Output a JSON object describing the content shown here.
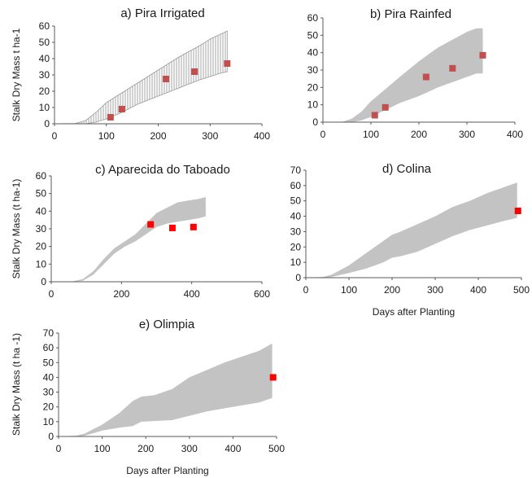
{
  "colors": {
    "band": "#c3c3c3",
    "hatch": "#9a9a9a",
    "obs_muted": "#c0504d",
    "obs_bright": "#ff0000",
    "axis": "#595959"
  },
  "chart_data": [
    {
      "id": "a",
      "type": "area",
      "title": "a) Pira Irrigated",
      "xlabel": "",
      "ylabel": "Stalk Dry Mass t ha-1",
      "xlim": [
        0,
        400
      ],
      "ylim": [
        0,
        60
      ],
      "xticks": [
        0,
        100,
        200,
        300,
        400
      ],
      "yticks": [
        0,
        10,
        20,
        30,
        40,
        50,
        60
      ],
      "band_style": "hatched",
      "marker": "obs_muted",
      "band": {
        "x": [
          0,
          40,
          60,
          80,
          100,
          130,
          160,
          200,
          240,
          280,
          300,
          320,
          333
        ],
        "lower": [
          0,
          0,
          0,
          1,
          3,
          7,
          12,
          17,
          22,
          27,
          29,
          31,
          32
        ],
        "upper": [
          0,
          0.2,
          2,
          7,
          13,
          19,
          25,
          33,
          41,
          48,
          52,
          55,
          57
        ]
      },
      "observed": {
        "x": [
          108,
          130,
          215,
          270,
          333
        ],
        "y": [
          4,
          9,
          27.5,
          32,
          37
        ]
      }
    },
    {
      "id": "b",
      "type": "area",
      "title": "b) Pira Rainfed",
      "xlabel": "",
      "ylabel": "",
      "xlim": [
        0,
        400
      ],
      "ylim": [
        0,
        60
      ],
      "xticks": [
        0,
        100,
        200,
        300,
        400
      ],
      "yticks": [
        0,
        10,
        20,
        30,
        40,
        50,
        60
      ],
      "band_style": "solid",
      "marker": "obs_muted",
      "band": {
        "x": [
          0,
          40,
          60,
          80,
          100,
          130,
          160,
          200,
          240,
          280,
          300,
          320,
          333
        ],
        "lower": [
          0,
          0,
          0,
          1,
          3,
          7,
          11,
          15,
          20,
          24,
          26,
          28,
          28
        ],
        "upper": [
          0,
          0.2,
          2,
          6,
          12,
          19,
          26,
          35,
          43,
          49,
          52,
          54,
          54
        ]
      },
      "observed": {
        "x": [
          108,
          130,
          215,
          270,
          333
        ],
        "y": [
          4,
          8.5,
          26,
          31,
          38.5
        ]
      }
    },
    {
      "id": "c",
      "type": "area",
      "title": "c) Aparecida do Taboado",
      "xlabel": "",
      "ylabel": "Stalk Dry Mass (t ha-1)",
      "xlim": [
        0,
        600
      ],
      "ylim": [
        0,
        60
      ],
      "xticks": [
        0,
        200,
        400,
        600
      ],
      "yticks": [
        0,
        10,
        20,
        30,
        40,
        50,
        60
      ],
      "band_style": "solid",
      "marker": "obs_bright",
      "band": {
        "x": [
          0,
          60,
          90,
          120,
          150,
          180,
          210,
          240,
          270,
          300,
          330,
          360,
          390,
          420,
          440
        ],
        "lower": [
          0,
          0,
          0.5,
          4,
          10,
          16,
          20,
          23,
          27,
          31,
          33,
          34,
          35,
          36,
          37
        ],
        "upper": [
          0,
          0.2,
          1.5,
          6,
          13,
          19,
          23,
          27,
          33,
          39,
          42,
          45,
          46,
          47,
          48
        ]
      },
      "observed": {
        "x": [
          283,
          345,
          405
        ],
        "y": [
          32.5,
          30.5,
          31
        ]
      }
    },
    {
      "id": "d",
      "type": "area",
      "title": "d) Colina",
      "xlabel": "Days after Planting",
      "ylabel": "",
      "xlim": [
        0,
        500
      ],
      "ylim": [
        0,
        70
      ],
      "xticks": [
        0,
        100,
        200,
        300,
        400,
        500
      ],
      "yticks": [
        0,
        10,
        20,
        30,
        40,
        50,
        60,
        70
      ],
      "band_style": "solid",
      "marker": "obs_bright",
      "band": {
        "x": [
          0,
          40,
          60,
          100,
          140,
          180,
          200,
          220,
          260,
          300,
          340,
          380,
          420,
          460,
          490
        ],
        "lower": [
          0,
          0,
          0.5,
          3,
          6,
          10,
          13,
          14,
          17,
          22,
          27,
          31,
          34,
          37,
          39
        ],
        "upper": [
          0,
          0.5,
          2,
          8,
          16,
          24,
          28,
          30,
          35,
          40,
          46,
          50,
          55,
          59,
          62
        ]
      },
      "observed": {
        "x": [
          492
        ],
        "y": [
          43.5
        ]
      }
    },
    {
      "id": "e",
      "type": "area",
      "title": "e) Olimpia",
      "xlabel": "Days after Planting",
      "ylabel": "Stalk Dry Mass (t ha -1)",
      "xlim": [
        0,
        500
      ],
      "ylim": [
        0,
        70
      ],
      "xticks": [
        0,
        100,
        200,
        300,
        400,
        500
      ],
      "yticks": [
        0,
        10,
        20,
        30,
        40,
        50,
        60,
        70
      ],
      "band_style": "solid",
      "marker": "obs_bright",
      "band": {
        "x": [
          0,
          40,
          60,
          100,
          140,
          170,
          190,
          220,
          260,
          300,
          340,
          380,
          420,
          460,
          490
        ],
        "lower": [
          0,
          0,
          0.5,
          4,
          6,
          7,
          10,
          10.5,
          11,
          14,
          17,
          19,
          21,
          23,
          26
        ],
        "upper": [
          0,
          0.5,
          2,
          8,
          16,
          24,
          27,
          28,
          32,
          40,
          45,
          50,
          54,
          58,
          63
        ]
      },
      "observed": {
        "x": [
          492
        ],
        "y": [
          40
        ]
      }
    }
  ]
}
